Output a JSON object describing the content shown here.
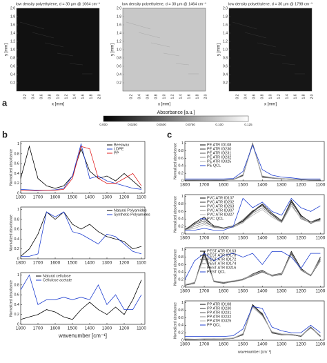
{
  "panel_labels": [
    "a",
    "b",
    "c"
  ],
  "images": [
    {
      "title": "low density polyethylene, d = 30 µm @ 1064 cm⁻¹",
      "tone": "#111"
    },
    {
      "title": "low density polyethylene, d = 30 µm @ 1464 cm⁻¹",
      "tone": "#c8c8c8"
    },
    {
      "title": "low density polyethylene, d = 30 µm @ 1798 cm⁻¹",
      "tone": "#161616"
    }
  ],
  "image_xlabel": "x [mm]",
  "image_ylabel": "y [mm]",
  "image_ticks": [
    0.2,
    0.4,
    0.6,
    0.8,
    {
      "value": 1,
      "label": "1.0"
    },
    1.2,
    1.4,
    1.6,
    1.8,
    {
      "value": 2,
      "label": "2.0"
    }
  ],
  "colorbar": {
    "label": "Absorbance [a.u.]",
    "ticks": [
      "0.000",
      "0.0250",
      "0.0500",
      "0.0750",
      "0.100",
      "0.125"
    ]
  },
  "chart_data": [
    {
      "type": "line",
      "panel": "b",
      "ylabel": "Normalized absorbance",
      "legend": "upper right",
      "x": [
        1800,
        1750,
        1700,
        1650,
        1600,
        1550,
        1500,
        1450,
        1400,
        1350,
        1300,
        1250,
        1200,
        1150,
        1100
      ],
      "xlim": [
        1800,
        1080
      ],
      "xticks": [
        1800,
        1700,
        1600,
        1500,
        1400,
        1300,
        1200,
        1100
      ],
      "ylim": [
        0,
        1.05
      ],
      "yticks": [
        0,
        0.2,
        0.4,
        0.6,
        0.8,
        1
      ],
      "series": [
        {
          "name": "Beeswax",
          "color": "#000000",
          "values": [
            0.3,
            0.95,
            0.3,
            0.15,
            0.1,
            0.15,
            0.35,
            0.9,
            0.45,
            0.3,
            0.35,
            0.25,
            0.4,
            0.25,
            0.1
          ]
        },
        {
          "name": "LDPE",
          "color": "#1f3fd0",
          "values": [
            0.08,
            0.07,
            0.06,
            0.06,
            0.07,
            0.1,
            0.35,
            1.0,
            0.3,
            0.35,
            0.25,
            0.2,
            0.15,
            0.1,
            0.08
          ]
        },
        {
          "name": "PP",
          "color": "#e02020",
          "values": [
            0.05,
            0.05,
            0.05,
            0.06,
            0.06,
            0.08,
            0.3,
            0.95,
            0.9,
            0.3,
            0.2,
            0.2,
            0.3,
            0.4,
            0.15
          ]
        }
      ]
    },
    {
      "type": "line",
      "panel": "b",
      "ylabel": "Normalized absorbance",
      "legend": "upper right",
      "x": [
        1800,
        1750,
        1700,
        1650,
        1600,
        1550,
        1500,
        1450,
        1400,
        1350,
        1300,
        1250,
        1200,
        1150,
        1100
      ],
      "xlim": [
        1800,
        1080
      ],
      "xticks": [
        1800,
        1700,
        1600,
        1500,
        1400,
        1300,
        1200,
        1100
      ],
      "ylim": [
        0,
        1.05
      ],
      "yticks": [
        0,
        0.2,
        0.4,
        0.6,
        0.8,
        1
      ],
      "series": [
        {
          "name": "Natural Polyamides",
          "color": "#000000",
          "values": [
            0.05,
            0.2,
            0.5,
            0.95,
            0.8,
            0.95,
            0.7,
            0.6,
            0.7,
            0.55,
            0.45,
            0.4,
            0.35,
            0.2,
            0.25
          ]
        },
        {
          "name": "Synthetic Polyamides",
          "color": "#1f3fd0",
          "values": [
            0.05,
            0.05,
            0.1,
            0.95,
            0.85,
            0.95,
            0.55,
            0.5,
            0.4,
            0.3,
            0.5,
            0.45,
            0.3,
            0.15,
            0.1
          ]
        }
      ]
    },
    {
      "type": "line",
      "panel": "b",
      "ylabel": "Normalized absorbance",
      "xlabel": "wavenumber [cm⁻¹]",
      "legend": "upper left",
      "x": [
        1800,
        1750,
        1700,
        1650,
        1600,
        1550,
        1500,
        1450,
        1400,
        1350,
        1300,
        1250,
        1200,
        1150,
        1100
      ],
      "xlim": [
        1800,
        1080
      ],
      "xticks": [
        1800,
        1700,
        1600,
        1500,
        1400,
        1300,
        1200,
        1100
      ],
      "ylim": [
        0,
        1.05
      ],
      "yticks": [
        0,
        0.2,
        0.4,
        0.6,
        0.8,
        1
      ],
      "series": [
        {
          "name": "Natural cellulose",
          "color": "#000000",
          "values": [
            0.1,
            0.15,
            0.2,
            0.3,
            0.25,
            0.15,
            0.1,
            0.3,
            0.45,
            0.3,
            0.2,
            0.35,
            0.2,
            0.5,
            0.9
          ]
        },
        {
          "name": "Cellulose acetate",
          "color": "#1f3fd0",
          "values": [
            0.7,
            1.0,
            0.4,
            0.5,
            0.5,
            0.55,
            0.5,
            0.55,
            0.5,
            0.8,
            0.4,
            0.6,
            0.3,
            0.3,
            0.6
          ]
        }
      ]
    },
    {
      "type": "line",
      "panel": "c",
      "ylabel": "Normalized absorbance",
      "legend": "upper left",
      "x": [
        1800,
        1750,
        1700,
        1650,
        1600,
        1550,
        1500,
        1450,
        1400,
        1350,
        1300,
        1250,
        1200,
        1150,
        1100
      ],
      "xlim": [
        1800,
        1080
      ],
      "xticks": [
        1800,
        1700,
        1600,
        1500,
        1400,
        1300,
        1200,
        1100
      ],
      "ylim": [
        0,
        1.05
      ],
      "yticks": [
        0,
        0.2,
        0.4,
        0.6,
        0.8,
        1
      ],
      "series": [
        {
          "name": "PE ATR ID108",
          "color": "#000000",
          "values": [
            0.02,
            0.02,
            0.02,
            0.02,
            0.02,
            0.03,
            0.15,
            1.0,
            0.1,
            0.08,
            0.05,
            0.04,
            0.03,
            0.02,
            0.02
          ]
        },
        {
          "name": "PE ATR ID230",
          "color": "#333333",
          "values": [
            0.02,
            0.02,
            0.03,
            0.02,
            0.02,
            0.03,
            0.14,
            0.98,
            0.12,
            0.07,
            0.05,
            0.04,
            0.03,
            0.03,
            0.02
          ]
        },
        {
          "name": "PE ATR ID231",
          "color": "#555555",
          "values": [
            0.03,
            0.02,
            0.02,
            0.02,
            0.03,
            0.04,
            0.16,
            0.97,
            0.11,
            0.08,
            0.06,
            0.05,
            0.03,
            0.02,
            0.02
          ]
        },
        {
          "name": "PE ATR ID232",
          "color": "#888888",
          "values": [
            0.02,
            0.03,
            0.02,
            0.03,
            0.02,
            0.03,
            0.13,
            0.99,
            0.09,
            0.07,
            0.05,
            0.04,
            0.04,
            0.02,
            0.03
          ]
        },
        {
          "name": "PE ATR ID325",
          "color": "#b0b0b0",
          "values": [
            0.03,
            0.03,
            0.03,
            0.03,
            0.03,
            0.04,
            0.17,
            0.96,
            0.13,
            0.09,
            0.06,
            0.05,
            0.04,
            0.03,
            0.03
          ]
        },
        {
          "name": "PE QCL",
          "color": "#1f3fd0",
          "values": [
            0.05,
            0.05,
            0.05,
            0.05,
            0.05,
            0.06,
            0.25,
            0.95,
            0.3,
            0.15,
            0.1,
            0.08,
            0.05,
            0.05,
            0.05
          ]
        }
      ]
    },
    {
      "type": "line",
      "panel": "c",
      "ylabel": "Normalized absorbance",
      "legend": "upper left",
      "x": [
        1800,
        1750,
        1700,
        1650,
        1600,
        1550,
        1500,
        1450,
        1400,
        1350,
        1300,
        1250,
        1200,
        1150,
        1100
      ],
      "xlim": [
        1800,
        1080
      ],
      "xticks": [
        1800,
        1700,
        1600,
        1500,
        1400,
        1300,
        1200,
        1100
      ],
      "ylim": [
        0,
        1.05
      ],
      "yticks": [
        0,
        0.2,
        0.4,
        0.6,
        0.8,
        1
      ],
      "series": [
        {
          "name": "PVC ATR ID107",
          "color": "#000000",
          "values": [
            0.1,
            0.3,
            0.45,
            0.2,
            0.15,
            0.2,
            0.35,
            0.6,
            0.8,
            0.55,
            0.35,
            0.9,
            0.5,
            0.3,
            0.4
          ]
        },
        {
          "name": "PVC ATR ID202",
          "color": "#333333",
          "values": [
            0.12,
            0.28,
            0.4,
            0.22,
            0.16,
            0.22,
            0.33,
            0.58,
            0.78,
            0.5,
            0.33,
            0.85,
            0.48,
            0.32,
            0.42
          ]
        },
        {
          "name": "PVC ATR ID263",
          "color": "#555555",
          "values": [
            0.1,
            0.25,
            0.35,
            0.18,
            0.14,
            0.2,
            0.38,
            0.62,
            0.75,
            0.52,
            0.36,
            0.88,
            0.45,
            0.28,
            0.38
          ]
        },
        {
          "name": "PVC ATR ID307",
          "color": "#888888",
          "values": [
            0.11,
            0.2,
            0.3,
            0.2,
            0.15,
            0.18,
            0.3,
            0.55,
            0.7,
            0.5,
            0.3,
            0.8,
            0.4,
            0.3,
            0.35
          ]
        },
        {
          "name": "PVC ATR ID327",
          "color": "#b0b0b0",
          "values": [
            0.1,
            0.15,
            0.25,
            0.17,
            0.15,
            0.2,
            0.32,
            0.5,
            0.65,
            0.45,
            0.3,
            0.75,
            0.42,
            0.3,
            0.36
          ]
        },
        {
          "name": "PVC QCL",
          "color": "#1f3fd0",
          "values": [
            0.1,
            0.1,
            0.15,
            0.1,
            0.1,
            0.2,
            0.95,
            0.7,
            0.85,
            0.6,
            0.5,
            0.95,
            0.7,
            0.6,
            0.75
          ]
        }
      ]
    },
    {
      "type": "line",
      "panel": "c",
      "ylabel": "Normalized absorbance",
      "legend": "upper left",
      "x": [
        1800,
        1750,
        1700,
        1650,
        1600,
        1550,
        1500,
        1450,
        1400,
        1350,
        1300,
        1250,
        1200,
        1150,
        1100
      ],
      "xlim": [
        1800,
        1080
      ],
      "xticks": [
        1800,
        1700,
        1600,
        1500,
        1400,
        1300,
        1200,
        1100
      ],
      "ylim": [
        0,
        1.05
      ],
      "yticks": [
        0,
        0.2,
        0.4,
        0.6,
        0.8,
        1
      ],
      "series": [
        {
          "name": "PEST ATR ID163",
          "color": "#000000",
          "values": [
            0.05,
            0.1,
            0.95,
            0.15,
            0.1,
            0.15,
            0.2,
            0.35,
            0.45,
            0.3,
            0.35,
            0.95,
            0.5,
            0.3,
            0.8
          ]
        },
        {
          "name": "PEST ATR ID170",
          "color": "#333333",
          "values": [
            0.06,
            0.12,
            0.9,
            0.16,
            0.12,
            0.16,
            0.22,
            0.33,
            0.42,
            0.32,
            0.37,
            0.9,
            0.48,
            0.32,
            0.75
          ]
        },
        {
          "name": "PEST ATR ID172",
          "color": "#555555",
          "values": [
            0.05,
            0.1,
            0.88,
            0.14,
            0.1,
            0.15,
            0.2,
            0.3,
            0.4,
            0.3,
            0.33,
            0.88,
            0.45,
            0.3,
            0.7
          ]
        },
        {
          "name": "PEST ATR ID174",
          "color": "#888888",
          "values": [
            0.07,
            0.11,
            0.85,
            0.15,
            0.11,
            0.14,
            0.19,
            0.32,
            0.44,
            0.29,
            0.34,
            0.92,
            0.47,
            0.31,
            0.78
          ]
        },
        {
          "name": "PEST ATR ID216",
          "color": "#b0b0b0",
          "values": [
            0.06,
            0.13,
            0.8,
            0.17,
            0.13,
            0.17,
            0.21,
            0.34,
            0.43,
            0.31,
            0.36,
            0.86,
            0.46,
            0.33,
            0.72
          ]
        },
        {
          "name": "PEST QCL",
          "color": "#1f3fd0",
          "values": [
            0.2,
            0.7,
            0.9,
            0.7,
            0.85,
            0.9,
            0.8,
            0.9,
            0.6,
            0.95,
            0.95,
            0.8,
            0.5,
            0.9,
            0.9
          ]
        }
      ]
    },
    {
      "type": "line",
      "panel": "c",
      "ylabel": "Normalized absorbance",
      "xlabel": "wavenumber [cm⁻¹]",
      "legend": "upper left",
      "x": [
        1800,
        1750,
        1700,
        1650,
        1600,
        1550,
        1500,
        1450,
        1400,
        1350,
        1300,
        1250,
        1200,
        1150,
        1100
      ],
      "xlim": [
        1800,
        1080
      ],
      "xticks": [
        1800,
        1700,
        1600,
        1500,
        1400,
        1300,
        1200,
        1100
      ],
      "ylim": [
        0,
        1.05
      ],
      "yticks": [
        0,
        0.2,
        0.4,
        0.6,
        0.8,
        1
      ],
      "series": [
        {
          "name": "PP ATR ID108",
          "color": "#000000",
          "values": [
            0.02,
            0.02,
            0.03,
            0.03,
            0.03,
            0.05,
            0.15,
            0.95,
            0.7,
            0.2,
            0.15,
            0.15,
            0.1,
            0.35,
            0.1
          ]
        },
        {
          "name": "PP ATR ID230",
          "color": "#333333",
          "values": [
            0.03,
            0.02,
            0.03,
            0.03,
            0.04,
            0.05,
            0.16,
            0.93,
            0.68,
            0.21,
            0.16,
            0.14,
            0.11,
            0.33,
            0.11
          ]
        },
        {
          "name": "PP ATR ID231",
          "color": "#555555",
          "values": [
            0.02,
            0.03,
            0.02,
            0.03,
            0.03,
            0.06,
            0.14,
            0.9,
            0.72,
            0.19,
            0.14,
            0.15,
            0.1,
            0.34,
            0.1
          ]
        },
        {
          "name": "PP ATR ID232",
          "color": "#888888",
          "values": [
            0.03,
            0.03,
            0.03,
            0.04,
            0.03,
            0.05,
            0.17,
            0.92,
            0.66,
            0.22,
            0.15,
            0.16,
            0.12,
            0.36,
            0.12
          ]
        },
        {
          "name": "PP ATR ID325",
          "color": "#b0b0b0",
          "values": [
            0.04,
            0.03,
            0.04,
            0.04,
            0.04,
            0.06,
            0.18,
            0.88,
            0.65,
            0.23,
            0.17,
            0.16,
            0.12,
            0.32,
            0.13
          ]
        },
        {
          "name": "PP QCL",
          "color": "#1f3fd0",
          "values": [
            0.1,
            0.1,
            0.1,
            0.1,
            0.1,
            0.12,
            0.3,
            0.9,
            0.85,
            0.35,
            0.25,
            0.2,
            0.2,
            0.4,
            0.2
          ]
        }
      ]
    }
  ]
}
